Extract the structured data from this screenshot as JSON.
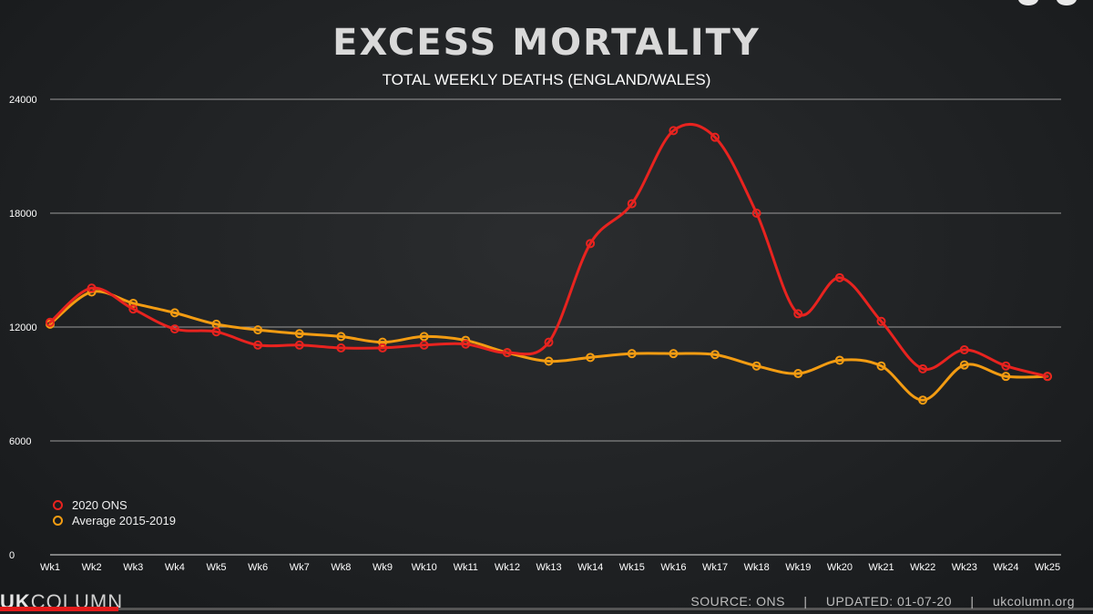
{
  "chart_data": {
    "type": "line",
    "title": "EXCESS MORTALITY",
    "subtitle": "TOTAL WEEKLY DEATHS (ENGLAND/WALES)",
    "categories": [
      "Wk1",
      "Wk2",
      "Wk3",
      "Wk4",
      "Wk5",
      "Wk6",
      "Wk7",
      "Wk8",
      "Wk9",
      "Wk10",
      "Wk11",
      "Wk12",
      "Wk13",
      "Wk14",
      "Wk15",
      "Wk16",
      "Wk17",
      "Wk18",
      "Wk19",
      "Wk20",
      "Wk21",
      "Wk22",
      "Wk23",
      "Wk24",
      "Wk25"
    ],
    "yticks": [
      0,
      6000,
      12000,
      18000,
      24000
    ],
    "ylim": [
      0,
      24000
    ],
    "grid": true,
    "legend_position": "bottom-left",
    "series": [
      {
        "name": "2020 ONS",
        "color": "#e8231f",
        "values": [
          12250,
          14050,
          12950,
          11900,
          11750,
          11050,
          11050,
          10900,
          10900,
          11050,
          11100,
          10650,
          11200,
          16400,
          18500,
          22350,
          22000,
          18000,
          12700,
          14600,
          12300,
          9800,
          10800,
          9950,
          9400
        ]
      },
      {
        "name": "Average 2015-2019",
        "color": "#f39c12",
        "values": [
          12150,
          13850,
          13250,
          12750,
          12150,
          11850,
          11650,
          11500,
          11200,
          11500,
          11300,
          10650,
          10200,
          10400,
          10600,
          10600,
          10550,
          9950,
          9550,
          10250,
          9950,
          8150,
          10000,
          9400,
          9400
        ]
      }
    ]
  },
  "footer": {
    "brand_uk": "UK",
    "brand_column": "COLUMN",
    "source": "SOURCE: ONS",
    "separator": "|",
    "updated": "UPDATED: 01-07-20",
    "website": "ukcolumn.org"
  }
}
